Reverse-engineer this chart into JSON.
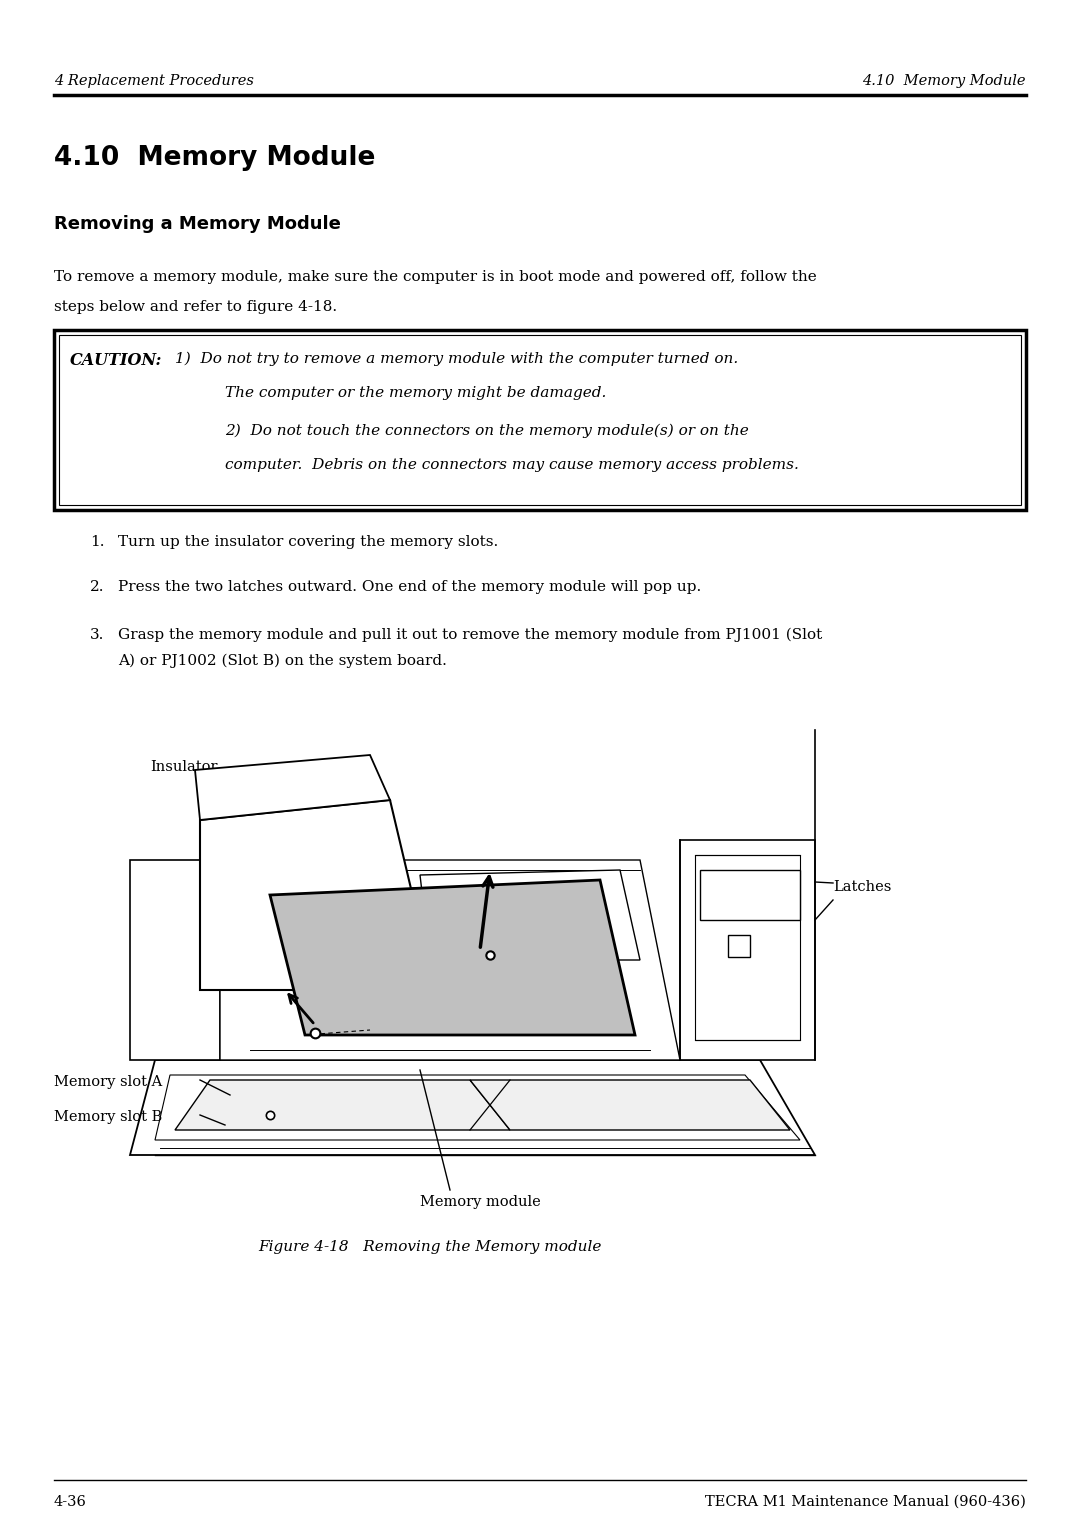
{
  "bg_color": "#ffffff",
  "header_left": "4 Replacement Procedures",
  "header_right": "4.10  Memory Module",
  "section_title": "4.10  Memory Module",
  "subsection_title": "Removing a Memory Module",
  "body_line1": "To remove a memory module, make sure the computer is in boot mode and powered off, follow the",
  "body_line2": "steps below and refer to figure 4-18.",
  "caution_label": "CAUTION:",
  "caution_text_1": "1)  Do not try to remove a memory module with the computer turned on.",
  "caution_text_2": "The computer or the memory might be damaged.",
  "caution_text_3": "2)  Do not touch the connectors on the memory module(s) or on the",
  "caution_text_4": "computer.  Debris on the connectors may cause memory access problems.",
  "step1_num": "1.",
  "step1_text": "Turn up the insulator covering the memory slots.",
  "step2_num": "2.",
  "step2_text": "Press the two latches outward. One end of the memory module will pop up.",
  "step3_num": "3.",
  "step3_line1": "Grasp the memory module and pull it out to remove the memory module from PJ1001 (Slot",
  "step3_line2": "A) or PJ1002 (Slot B) on the system board.",
  "label_insulator": "Insulator",
  "label_latches": "Latches",
  "label_memory_slot_a": "Memory slot A",
  "label_memory_slot_b": "Memory slot B",
  "label_memory_module": "Memory module",
  "figure_caption": "Figure 4-18   Removing the Memory module",
  "footer_left": "4-36",
  "footer_right": "TECRA M1 Maintenance Manual (960-436)"
}
